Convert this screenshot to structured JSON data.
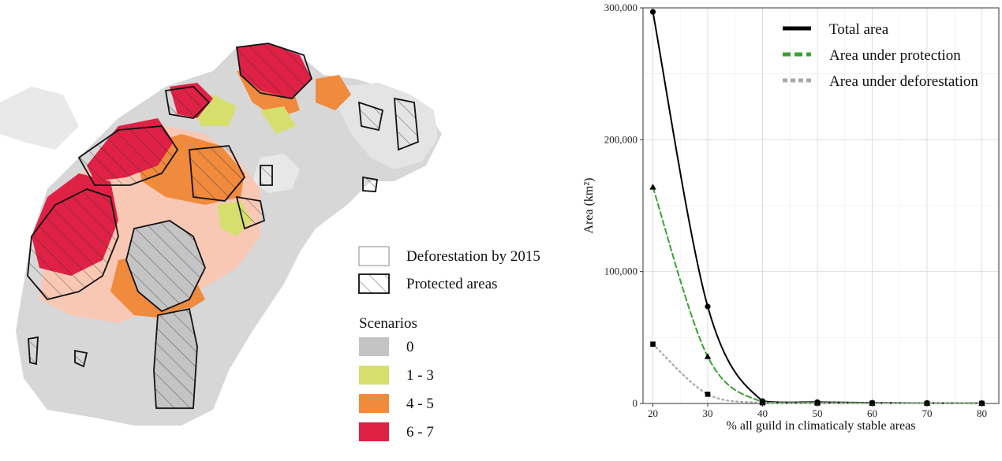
{
  "map": {
    "legend": {
      "deforestation_label": "Deforestation by 2015",
      "protected_label": "Protected areas",
      "scenarios_title": "Scenarios",
      "items": [
        {
          "label": "0",
          "color": "#c4c4c4"
        },
        {
          "label": "1 - 3",
          "color": "#d6df6e"
        },
        {
          "label": "4 - 5",
          "color": "#f08a3c"
        },
        {
          "label": "6 - 7",
          "color": "#de2145"
        }
      ]
    }
  },
  "chart_data": {
    "type": "line",
    "xlabel": "% all guild in climaticaly stable areas",
    "ylabel": "Area (km²)",
    "x": [
      20,
      30,
      40,
      50,
      60,
      70,
      80
    ],
    "x_ticks": [
      "20",
      "30",
      "40",
      "50",
      "60",
      "70",
      "80"
    ],
    "y_ticks": [
      "0",
      "100,000",
      "200,000",
      "300,000"
    ],
    "y_tick_values": [
      0,
      100000,
      200000,
      300000
    ],
    "xlim": [
      18.2,
      83.1
    ],
    "ylim": [
      0,
      300000
    ],
    "grid": true,
    "legend_position": "top-right",
    "series": [
      {
        "name": "Total area",
        "color": "#000000",
        "dash": "solid",
        "marker": "circle",
        "values": [
          297000,
          73500,
          1800,
          1000,
          500,
          300,
          200
        ]
      },
      {
        "name": "Area under protection",
        "color": "#3aa135",
        "dash": "dashed",
        "marker": "triangle",
        "values": [
          164000,
          35500,
          1000,
          500,
          300,
          200,
          100
        ]
      },
      {
        "name": "Area under deforestation",
        "color": "#a9a9a9",
        "dash": "dotted",
        "marker": "square",
        "values": [
          45000,
          7000,
          500,
          300,
          200,
          100,
          100
        ]
      }
    ]
  }
}
